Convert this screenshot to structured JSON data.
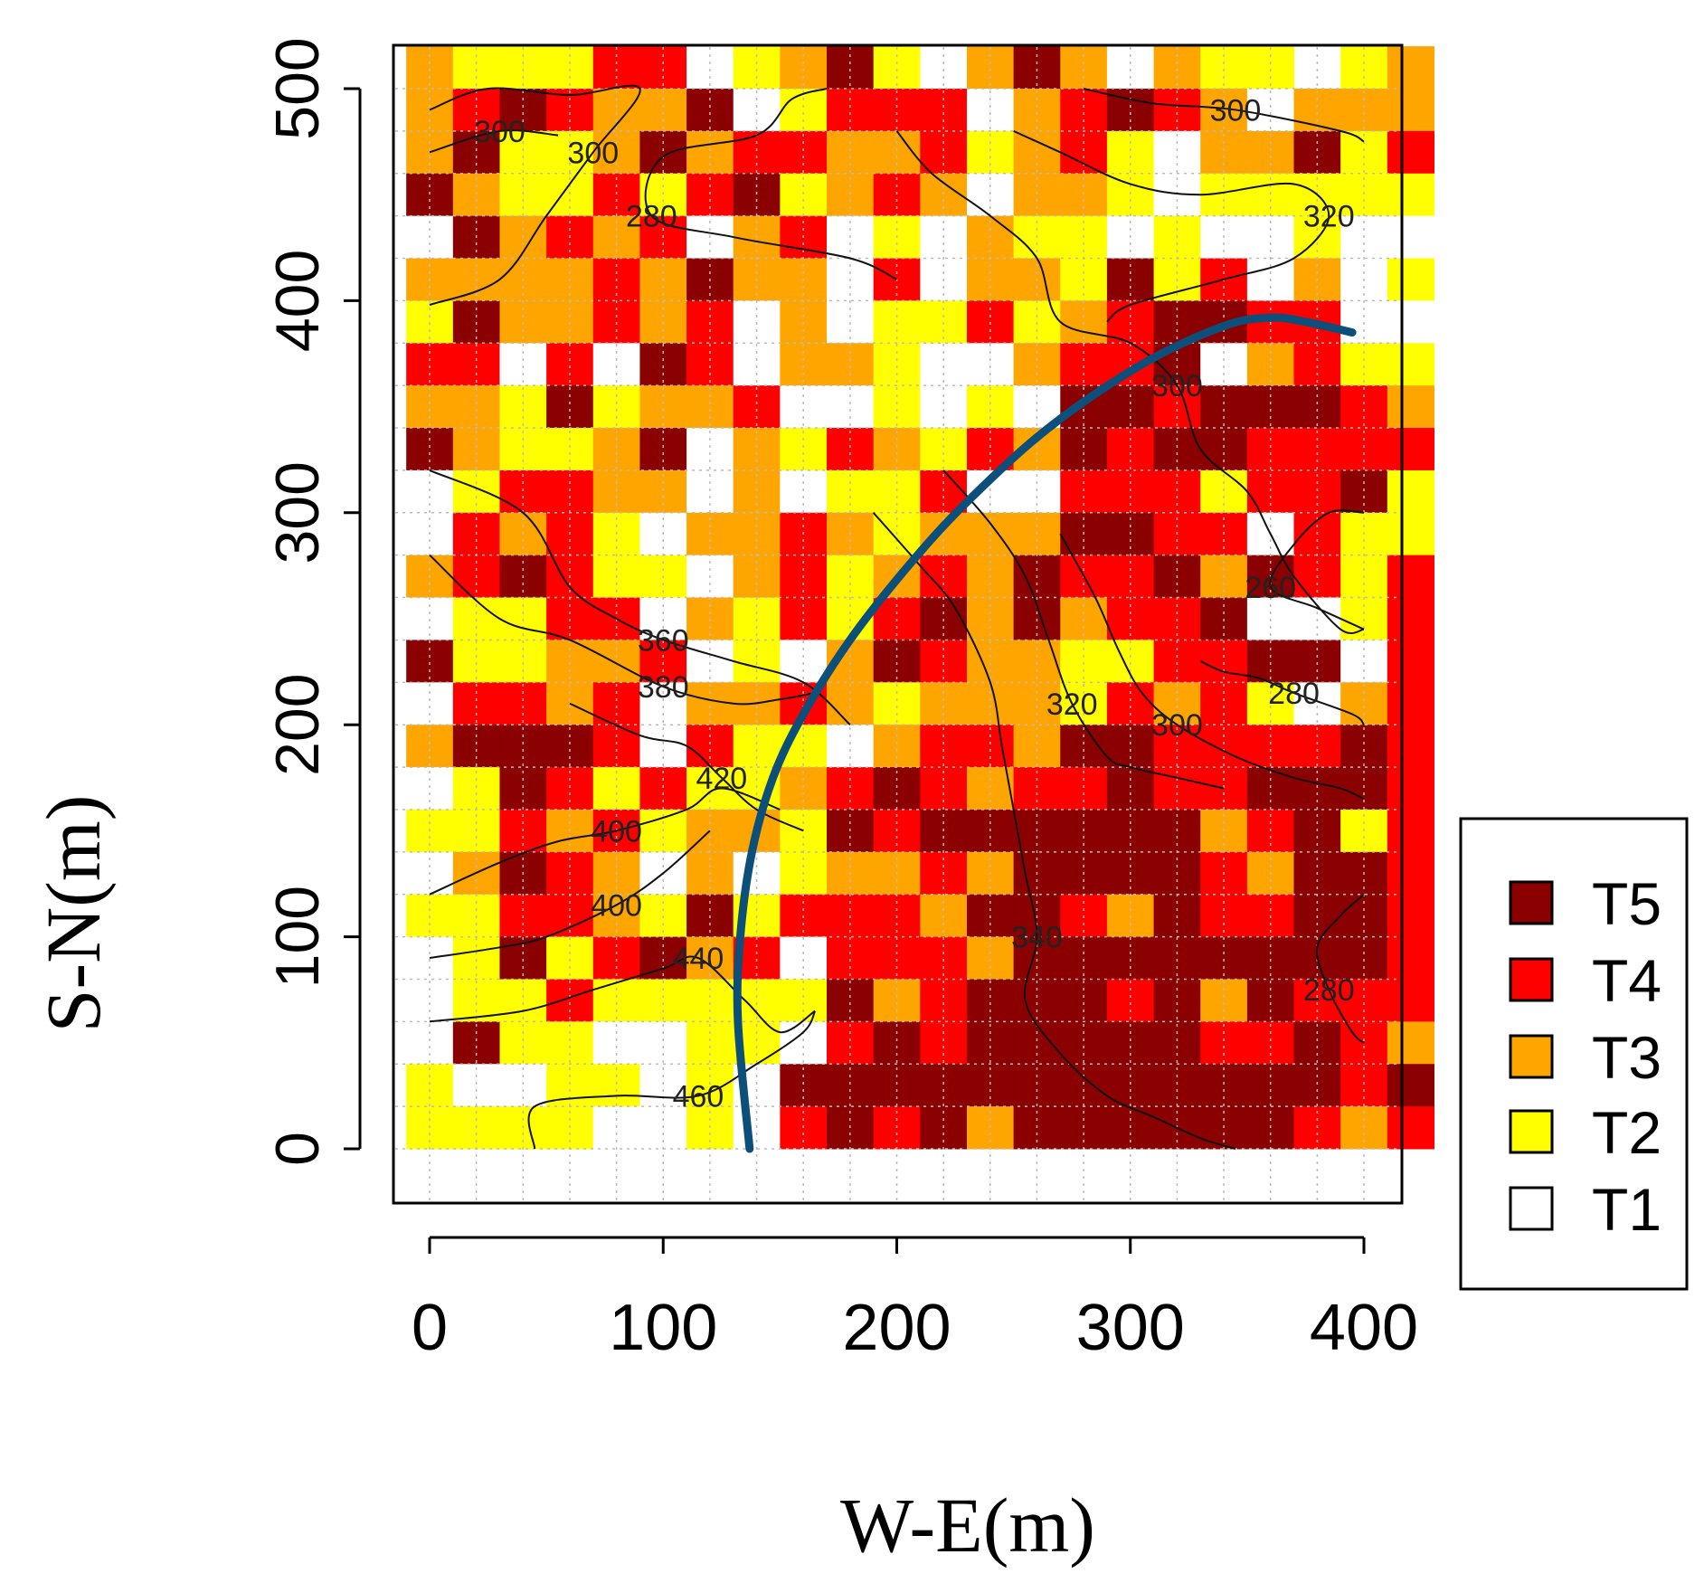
{
  "chart_data": {
    "type": "heatmap",
    "title": "",
    "xlabel": "W-E(m)",
    "ylabel": "S-N(m)",
    "xlim": [
      0,
      400
    ],
    "ylim": [
      0,
      500
    ],
    "cell_size_m": 20,
    "x_ticks": [
      "0",
      "100",
      "200",
      "300",
      "400"
    ],
    "y_ticks": [
      "0",
      "100",
      "200",
      "300",
      "400",
      "500"
    ],
    "legend": {
      "placement": "right",
      "entries": [
        {
          "label": "T5",
          "color": "#8B0000"
        },
        {
          "label": "T4",
          "color": "#FF0000"
        },
        {
          "label": "T3",
          "color": "#FFA500"
        },
        {
          "label": "T2",
          "color": "#FFFF00"
        },
        {
          "label": "T1",
          "color": "#FFFFFF"
        }
      ]
    },
    "grid_rows_top_to_bottom": [
      "3222441235213531322 23",
      "3454335124441345431333",
      "3522353443342342133524",
      "5322424523431332122222",
      "1534341341213221211211",
      "3333435331413325241312",
      "2533434131224234554411",
      "4414154133211344513422",
      "3325233411212155455543",
      "5322351324324354554444",
      "1244331312241144424452",
      "1434213343233355441422",
      "3454221342343544535424",
      "1224413242453534451124",
      "5223341213543322445514",
      "1443413343233324342134",
      "3555414221344355444454",
      "1254242234543445445554",
      "2243423325455555534524",
      "1354313123343555543554",
      "2244325244435543544554",
      "1252453414443555555554",
      "1224222225345554535444",
      "1522112214545555544543",
      "2112212155555555555545",
      "2222112145453555555434"
    ],
    "contours": [
      {
        "label": "280",
        "points": [
          [
            170,
            500
          ],
          [
            155,
            495
          ],
          [
            140,
            478
          ],
          [
            100,
            468
          ],
          [
            95,
            440
          ],
          [
            130,
            430
          ],
          [
            180,
            420
          ],
          [
            200,
            410
          ]
        ]
      },
      {
        "label": "300",
        "points": [
          [
            0,
            490
          ],
          [
            25,
            500
          ],
          [
            60,
            497
          ],
          [
            90,
            500
          ],
          [
            70,
            470
          ],
          [
            50,
            440
          ],
          [
            30,
            410
          ],
          [
            0,
            398
          ]
        ]
      },
      {
        "label": "300",
        "points": [
          [
            0,
            470
          ],
          [
            30,
            480
          ],
          [
            55,
            478
          ]
        ]
      },
      {
        "label": "300",
        "points": [
          [
            280,
            500
          ],
          [
            310,
            493
          ],
          [
            345,
            490
          ],
          [
            390,
            480
          ],
          [
            400,
            475
          ]
        ]
      },
      {
        "label": "320",
        "points": [
          [
            250,
            480
          ],
          [
            270,
            470
          ],
          [
            300,
            455
          ],
          [
            330,
            450
          ],
          [
            370,
            455
          ],
          [
            385,
            440
          ],
          [
            370,
            420
          ],
          [
            340,
            410
          ],
          [
            300,
            398
          ],
          [
            290,
            390
          ]
        ]
      },
      {
        "label": "360",
        "points": [
          [
            0,
            320
          ],
          [
            40,
            300
          ],
          [
            60,
            265
          ],
          [
            80,
            250
          ],
          [
            100,
            240
          ],
          [
            130,
            230
          ],
          [
            160,
            220
          ],
          [
            180,
            200
          ]
        ]
      },
      {
        "label": "380",
        "points": [
          [
            0,
            280
          ],
          [
            30,
            250
          ],
          [
            60,
            240
          ],
          [
            100,
            218
          ],
          [
            130,
            210
          ],
          [
            150,
            212
          ],
          [
            165,
            215
          ]
        ]
      },
      {
        "label": "400",
        "points": [
          [
            0,
            120
          ],
          [
            30,
            135
          ],
          [
            55,
            145
          ],
          [
            80,
            150
          ],
          [
            110,
            160
          ],
          [
            125,
            170
          ],
          [
            150,
            160
          ]
        ]
      },
      {
        "label": "400",
        "points": [
          [
            0,
            90
          ],
          [
            30,
            95
          ],
          [
            50,
            100
          ],
          [
            80,
            115
          ],
          [
            100,
            130
          ],
          [
            120,
            150
          ]
        ]
      },
      {
        "label": "420",
        "points": [
          [
            60,
            210
          ],
          [
            90,
            195
          ],
          [
            110,
            190
          ],
          [
            125,
            175
          ],
          [
            140,
            160
          ],
          [
            160,
            150
          ]
        ]
      },
      {
        "label": "440",
        "points": [
          [
            0,
            60
          ],
          [
            40,
            65
          ],
          [
            70,
            75
          ],
          [
            100,
            85
          ],
          [
            115,
            90
          ],
          [
            135,
            70
          ],
          [
            150,
            55
          ],
          [
            165,
            65
          ]
        ]
      },
      {
        "label": "460",
        "points": [
          [
            45,
            0
          ],
          [
            45,
            20
          ],
          [
            80,
            25
          ],
          [
            115,
            25
          ],
          [
            140,
            40
          ],
          [
            160,
            55
          ],
          [
            165,
            65
          ]
        ]
      },
      {
        "label": "300",
        "points": [
          [
            200,
            480
          ],
          [
            215,
            460
          ],
          [
            240,
            440
          ],
          [
            260,
            420
          ],
          [
            270,
            390
          ],
          [
            300,
            380
          ],
          [
            320,
            360
          ],
          [
            330,
            330
          ],
          [
            350,
            310
          ],
          [
            360,
            290
          ],
          [
            370,
            270
          ],
          [
            390,
            245
          ],
          [
            400,
            245
          ]
        ]
      },
      {
        "label": "280",
        "points": [
          [
            330,
            230
          ],
          [
            340,
            225
          ],
          [
            355,
            222
          ],
          [
            370,
            215
          ],
          [
            395,
            205
          ],
          [
            400,
            200
          ]
        ]
      },
      {
        "label": "260",
        "points": [
          [
            400,
            300
          ],
          [
            385,
            300
          ],
          [
            370,
            285
          ],
          [
            360,
            265
          ],
          [
            380,
            255
          ],
          [
            400,
            245
          ]
        ]
      },
      {
        "label": "300",
        "points": [
          [
            270,
            290
          ],
          [
            285,
            260
          ],
          [
            295,
            235
          ],
          [
            305,
            215
          ],
          [
            320,
            200
          ],
          [
            345,
            185
          ],
          [
            370,
            175
          ],
          [
            390,
            170
          ],
          [
            400,
            165
          ]
        ]
      },
      {
        "label": "320",
        "points": [
          [
            220,
            320
          ],
          [
            240,
            295
          ],
          [
            255,
            270
          ],
          [
            265,
            240
          ],
          [
            275,
            210
          ],
          [
            290,
            185
          ],
          [
            300,
            180
          ],
          [
            320,
            175
          ],
          [
            340,
            170
          ]
        ]
      },
      {
        "label": "340",
        "points": [
          [
            190,
            300
          ],
          [
            210,
            275
          ],
          [
            225,
            255
          ],
          [
            240,
            220
          ],
          [
            245,
            190
          ],
          [
            250,
            160
          ],
          [
            255,
            130
          ],
          [
            260,
            100
          ],
          [
            255,
            70
          ],
          [
            270,
            45
          ],
          [
            290,
            25
          ],
          [
            310,
            15
          ],
          [
            330,
            5
          ],
          [
            345,
            0
          ]
        ]
      },
      {
        "label": "280",
        "points": [
          [
            400,
            120
          ],
          [
            390,
            110
          ],
          [
            380,
            95
          ],
          [
            385,
            75
          ],
          [
            395,
            55
          ],
          [
            400,
            50
          ]
        ]
      }
    ],
    "boundary_curve": {
      "color": "#0B4F7A",
      "points": [
        [
          137,
          0
        ],
        [
          132,
          60
        ],
        [
          133,
          100
        ],
        [
          138,
          140
        ],
        [
          147,
          175
        ],
        [
          160,
          205
        ],
        [
          180,
          240
        ],
        [
          205,
          275
        ],
        [
          230,
          305
        ],
        [
          265,
          340
        ],
        [
          305,
          370
        ],
        [
          340,
          388
        ],
        [
          360,
          392
        ],
        [
          375,
          390
        ],
        [
          395,
          385
        ]
      ]
    }
  }
}
